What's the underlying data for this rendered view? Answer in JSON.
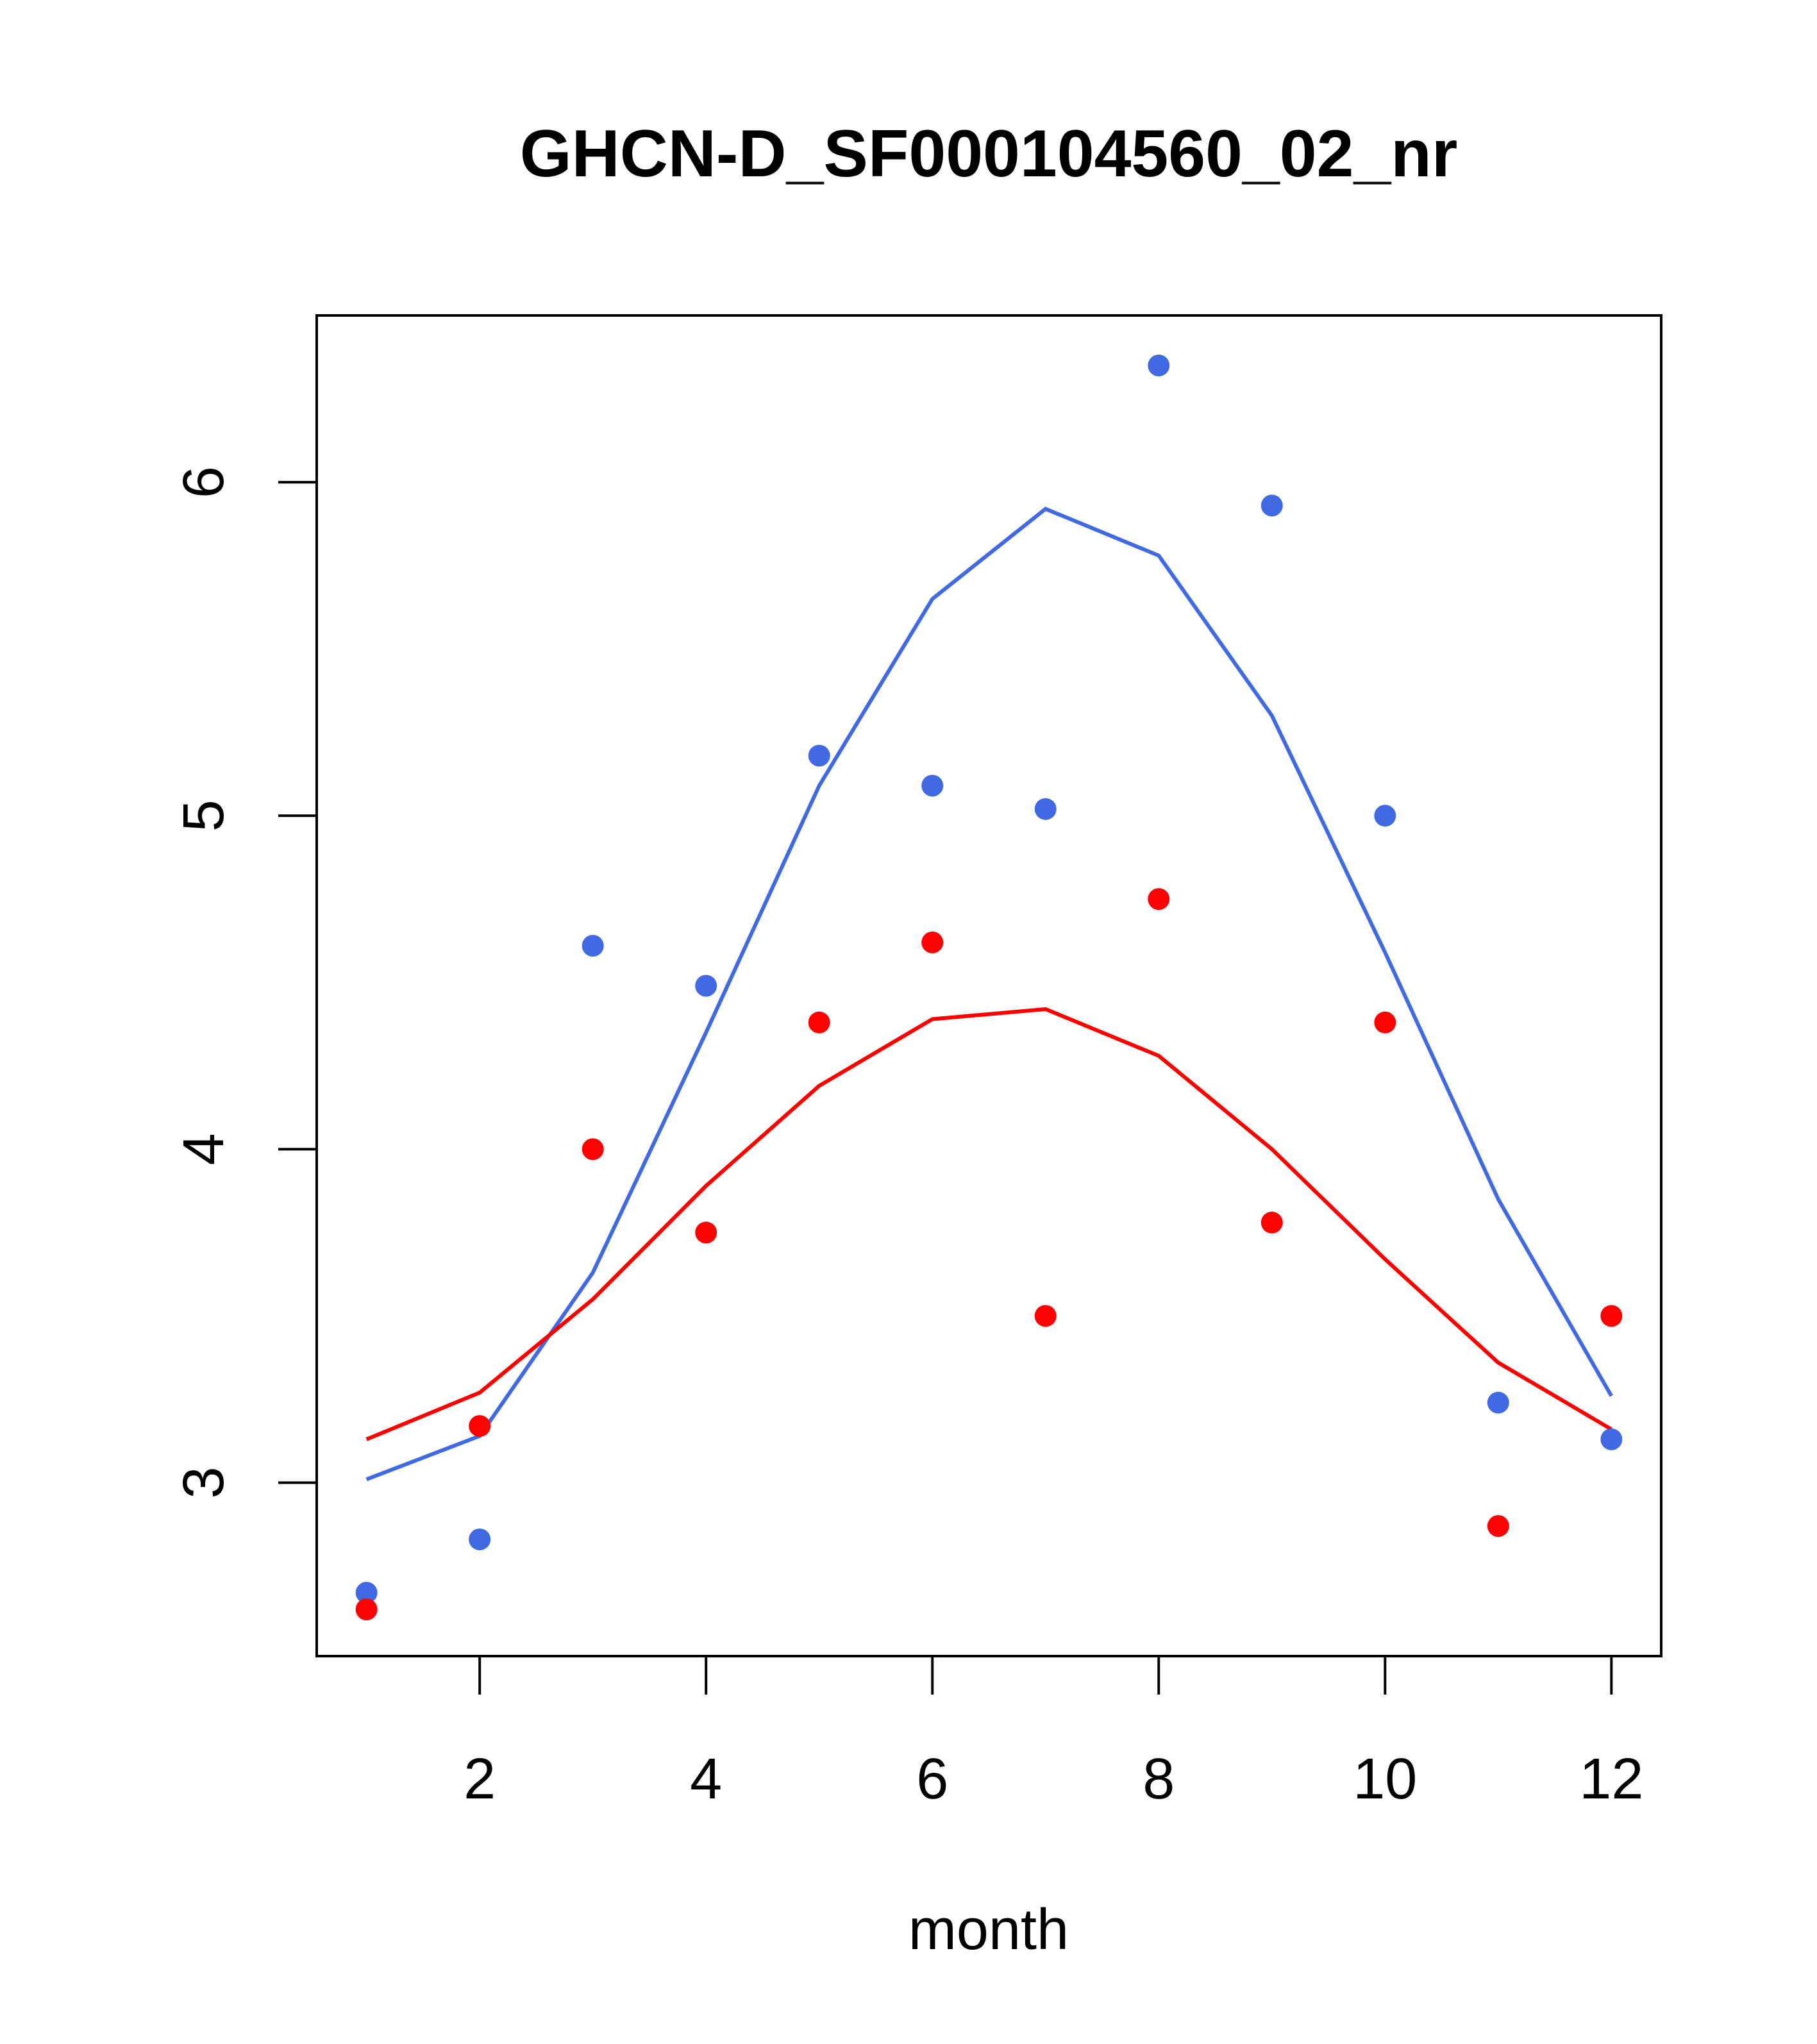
{
  "chart_data": {
    "type": "scatter",
    "title": "GHCN-D_SF000104560_02_nr",
    "xlabel": "month",
    "ylabel": "",
    "xlim": [
      0.56,
      12.44
    ],
    "ylim": [
      2.48,
      6.5
    ],
    "x_ticks": [
      2,
      4,
      6,
      8,
      10,
      12
    ],
    "x_tick_labels": [
      "2",
      "4",
      "6",
      "8",
      "10",
      "12"
    ],
    "y_ticks": [
      3,
      4,
      5,
      6
    ],
    "y_tick_labels": [
      "3",
      "4",
      "5",
      "6"
    ],
    "grid": false,
    "x": [
      1,
      2,
      3,
      4,
      5,
      6,
      7,
      8,
      9,
      10,
      11,
      12
    ],
    "series": [
      {
        "name": "blue points",
        "kind": "points",
        "color": "#4169E1",
        "values": [
          2.67,
          2.83,
          4.61,
          4.49,
          5.18,
          5.09,
          5.02,
          6.35,
          5.93,
          5.0,
          3.24,
          3.13
        ]
      },
      {
        "name": "red points",
        "kind": "points",
        "color": "#FF0000",
        "values": [
          2.62,
          3.17,
          4.0,
          3.75,
          4.38,
          4.62,
          3.5,
          4.75,
          3.78,
          4.38,
          2.87,
          3.5
        ]
      },
      {
        "name": "blue line",
        "kind": "line",
        "color": "#4169E1",
        "values": [
          3.01,
          3.14,
          3.63,
          4.35,
          5.09,
          5.65,
          5.92,
          5.78,
          5.3,
          4.59,
          3.85,
          3.26
        ]
      },
      {
        "name": "red line",
        "kind": "line",
        "color": "#FF0000",
        "values": [
          3.13,
          3.27,
          3.55,
          3.89,
          4.19,
          4.39,
          4.42,
          4.28,
          4.0,
          3.67,
          3.36,
          3.16
        ]
      }
    ]
  }
}
